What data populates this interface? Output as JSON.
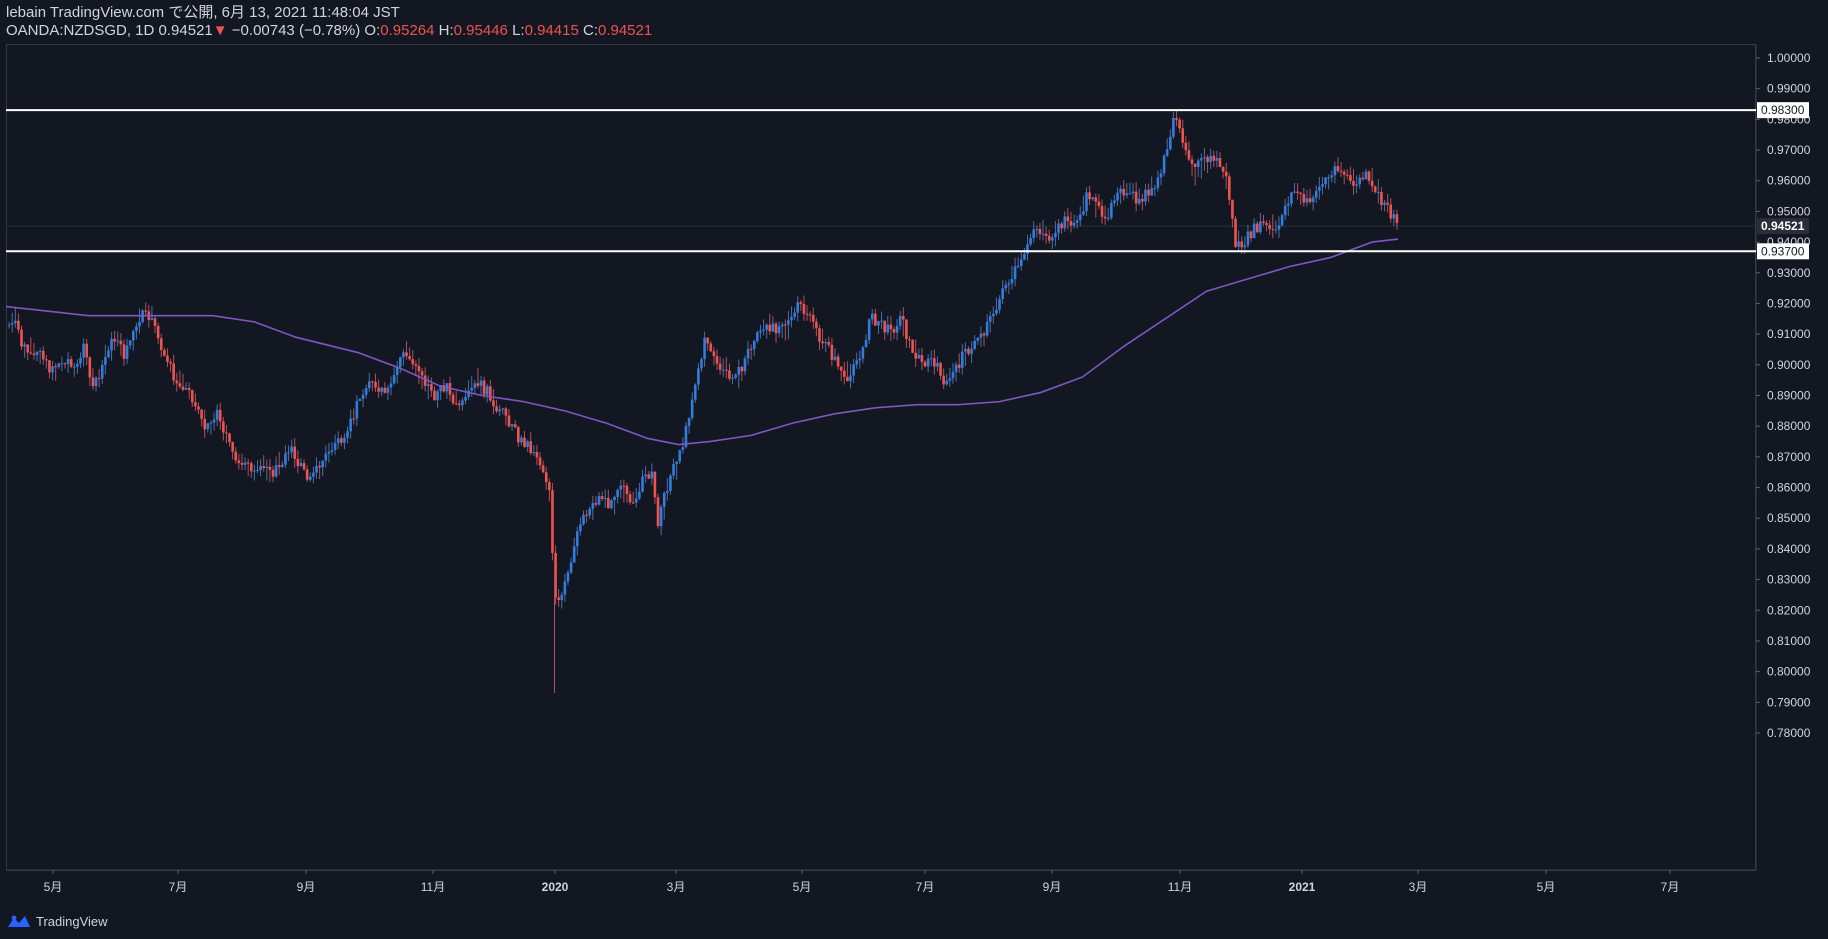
{
  "header": {
    "published": "lebain TradingView.com で公開, 6月 13, 2021 11:48:04 JST",
    "symbol": "OANDA:NZDSGD, 1D",
    "last": "0.94521",
    "arrow": "▼",
    "change": "−0.00743 (−0.78%)",
    "o_label": "O:",
    "o_value": "0.95264",
    "h_label": "H:",
    "h_value": "0.95446",
    "l_label": "L:",
    "l_value": "0.94415",
    "c_label": "C:",
    "c_value": "0.94521"
  },
  "footer": {
    "brand": "TradingView"
  },
  "colors": {
    "background": "#131722",
    "up": "#2962ff",
    "up_light": "#3a7bd5",
    "down": "#ef5350",
    "ma": "#7e57c2",
    "hline": "#ffffff",
    "axis_text": "#d1d4dc"
  },
  "chart_data": {
    "type": "candlestick",
    "symbol": "OANDA:NZDSGD",
    "interval": "1D",
    "ylim": [
      0.775,
      1.005
    ],
    "y_ticks": [
      "1.00000",
      "0.99000",
      "0.98000",
      "0.97000",
      "0.96000",
      "0.95000",
      "0.94000",
      "0.93000",
      "0.92000",
      "0.91000",
      "0.90000",
      "0.89000",
      "0.88000",
      "0.87000",
      "0.86000",
      "0.85000",
      "0.84000",
      "0.83000",
      "0.82000",
      "0.81000",
      "0.80000",
      "0.79000",
      "0.78000"
    ],
    "x_ticks": [
      "5月",
      "7月",
      "9月",
      "11月",
      "2020",
      "3月",
      "5月",
      "7月",
      "9月",
      "11月",
      "2021",
      "3月",
      "5月",
      "7月"
    ],
    "price_label": "0.94521",
    "horizontal_lines": [
      {
        "value": 0.983,
        "label": "0.98300"
      },
      {
        "value": 0.937,
        "label": "0.93700"
      }
    ],
    "close_path": [
      [
        0,
        0.913
      ],
      [
        8,
        0.916
      ],
      [
        15,
        0.907
      ],
      [
        25,
        0.905
      ],
      [
        35,
        0.902
      ],
      [
        45,
        0.898
      ],
      [
        55,
        0.901
      ],
      [
        65,
        0.899
      ],
      [
        75,
        0.905
      ],
      [
        85,
        0.893
      ],
      [
        95,
        0.902
      ],
      [
        105,
        0.909
      ],
      [
        115,
        0.903
      ],
      [
        125,
        0.913
      ],
      [
        135,
        0.919
      ],
      [
        145,
        0.911
      ],
      [
        155,
        0.902
      ],
      [
        165,
        0.894
      ],
      [
        175,
        0.891
      ],
      [
        185,
        0.885
      ],
      [
        195,
        0.879
      ],
      [
        205,
        0.884
      ],
      [
        215,
        0.874
      ],
      [
        225,
        0.869
      ],
      [
        235,
        0.866
      ],
      [
        245,
        0.868
      ],
      [
        255,
        0.864
      ],
      [
        265,
        0.868
      ],
      [
        275,
        0.872
      ],
      [
        285,
        0.867
      ],
      [
        295,
        0.862
      ],
      [
        305,
        0.869
      ],
      [
        315,
        0.873
      ],
      [
        325,
        0.877
      ],
      [
        335,
        0.883
      ],
      [
        345,
        0.891
      ],
      [
        355,
        0.894
      ],
      [
        365,
        0.892
      ],
      [
        375,
        0.897
      ],
      [
        385,
        0.905
      ],
      [
        395,
        0.899
      ],
      [
        405,
        0.894
      ],
      [
        415,
        0.89
      ],
      [
        425,
        0.893
      ],
      [
        435,
        0.887
      ],
      [
        445,
        0.892
      ],
      [
        455,
        0.895
      ],
      [
        465,
        0.891
      ],
      [
        475,
        0.886
      ],
      [
        485,
        0.882
      ],
      [
        495,
        0.876
      ],
      [
        505,
        0.873
      ],
      [
        515,
        0.868
      ],
      [
        525,
        0.858
      ],
      [
        530,
        0.826
      ],
      [
        535,
        0.824
      ],
      [
        545,
        0.836
      ],
      [
        555,
        0.848
      ],
      [
        565,
        0.853
      ],
      [
        575,
        0.857
      ],
      [
        585,
        0.854
      ],
      [
        595,
        0.86
      ],
      [
        605,
        0.856
      ],
      [
        615,
        0.862
      ],
      [
        625,
        0.866
      ],
      [
        630,
        0.848
      ],
      [
        640,
        0.862
      ],
      [
        650,
        0.87
      ],
      [
        660,
        0.882
      ],
      [
        668,
        0.897
      ],
      [
        675,
        0.908
      ],
      [
        685,
        0.902
      ],
      [
        695,
        0.898
      ],
      [
        705,
        0.895
      ],
      [
        715,
        0.903
      ],
      [
        725,
        0.909
      ],
      [
        735,
        0.914
      ],
      [
        745,
        0.91
      ],
      [
        755,
        0.913
      ],
      [
        765,
        0.921
      ],
      [
        775,
        0.917
      ],
      [
        785,
        0.91
      ],
      [
        795,
        0.905
      ],
      [
        805,
        0.899
      ],
      [
        815,
        0.896
      ],
      [
        825,
        0.902
      ],
      [
        835,
        0.915
      ],
      [
        845,
        0.914
      ],
      [
        855,
        0.91
      ],
      [
        865,
        0.915
      ],
      [
        875,
        0.905
      ],
      [
        885,
        0.9
      ],
      [
        895,
        0.903
      ],
      [
        905,
        0.895
      ],
      [
        915,
        0.897
      ],
      [
        925,
        0.903
      ],
      [
        935,
        0.907
      ],
      [
        945,
        0.91
      ],
      [
        955,
        0.918
      ],
      [
        965,
        0.925
      ],
      [
        975,
        0.932
      ],
      [
        985,
        0.938
      ],
      [
        995,
        0.944
      ],
      [
        1005,
        0.941
      ],
      [
        1015,
        0.945
      ],
      [
        1025,
        0.947
      ],
      [
        1035,
        0.946
      ],
      [
        1045,
        0.956
      ],
      [
        1055,
        0.951
      ],
      [
        1065,
        0.949
      ],
      [
        1075,
        0.955
      ],
      [
        1085,
        0.958
      ],
      [
        1095,
        0.953
      ],
      [
        1105,
        0.957
      ],
      [
        1115,
        0.962
      ],
      [
        1125,
        0.976
      ],
      [
        1132,
        0.982
      ],
      [
        1140,
        0.968
      ],
      [
        1148,
        0.963
      ],
      [
        1155,
        0.966
      ],
      [
        1165,
        0.968
      ],
      [
        1172,
        0.966
      ],
      [
        1180,
        0.96
      ],
      [
        1188,
        0.939
      ],
      [
        1195,
        0.94
      ],
      [
        1205,
        0.944
      ],
      [
        1215,
        0.947
      ],
      [
        1225,
        0.944
      ],
      [
        1235,
        0.95
      ],
      [
        1245,
        0.957
      ],
      [
        1255,
        0.954
      ],
      [
        1265,
        0.955
      ],
      [
        1275,
        0.961
      ],
      [
        1285,
        0.963
      ],
      [
        1295,
        0.962
      ],
      [
        1305,
        0.959
      ],
      [
        1315,
        0.963
      ],
      [
        1325,
        0.956
      ],
      [
        1335,
        0.951
      ],
      [
        1345,
        0.945
      ]
    ],
    "ma_path": [
      [
        0,
        0.919
      ],
      [
        80,
        0.916
      ],
      [
        160,
        0.916
      ],
      [
        200,
        0.916
      ],
      [
        240,
        0.914
      ],
      [
        280,
        0.909
      ],
      [
        340,
        0.904
      ],
      [
        380,
        0.899
      ],
      [
        420,
        0.893
      ],
      [
        460,
        0.89
      ],
      [
        500,
        0.888
      ],
      [
        540,
        0.885
      ],
      [
        580,
        0.881
      ],
      [
        620,
        0.876
      ],
      [
        650,
        0.874
      ],
      [
        680,
        0.875
      ],
      [
        720,
        0.877
      ],
      [
        760,
        0.881
      ],
      [
        800,
        0.884
      ],
      [
        840,
        0.886
      ],
      [
        880,
        0.887
      ],
      [
        920,
        0.887
      ],
      [
        960,
        0.888
      ],
      [
        1000,
        0.891
      ],
      [
        1040,
        0.896
      ],
      [
        1080,
        0.906
      ],
      [
        1120,
        0.915
      ],
      [
        1160,
        0.924
      ],
      [
        1200,
        0.928
      ],
      [
        1240,
        0.932
      ],
      [
        1280,
        0.935
      ],
      [
        1320,
        0.94
      ],
      [
        1345,
        0.941
      ]
    ]
  }
}
